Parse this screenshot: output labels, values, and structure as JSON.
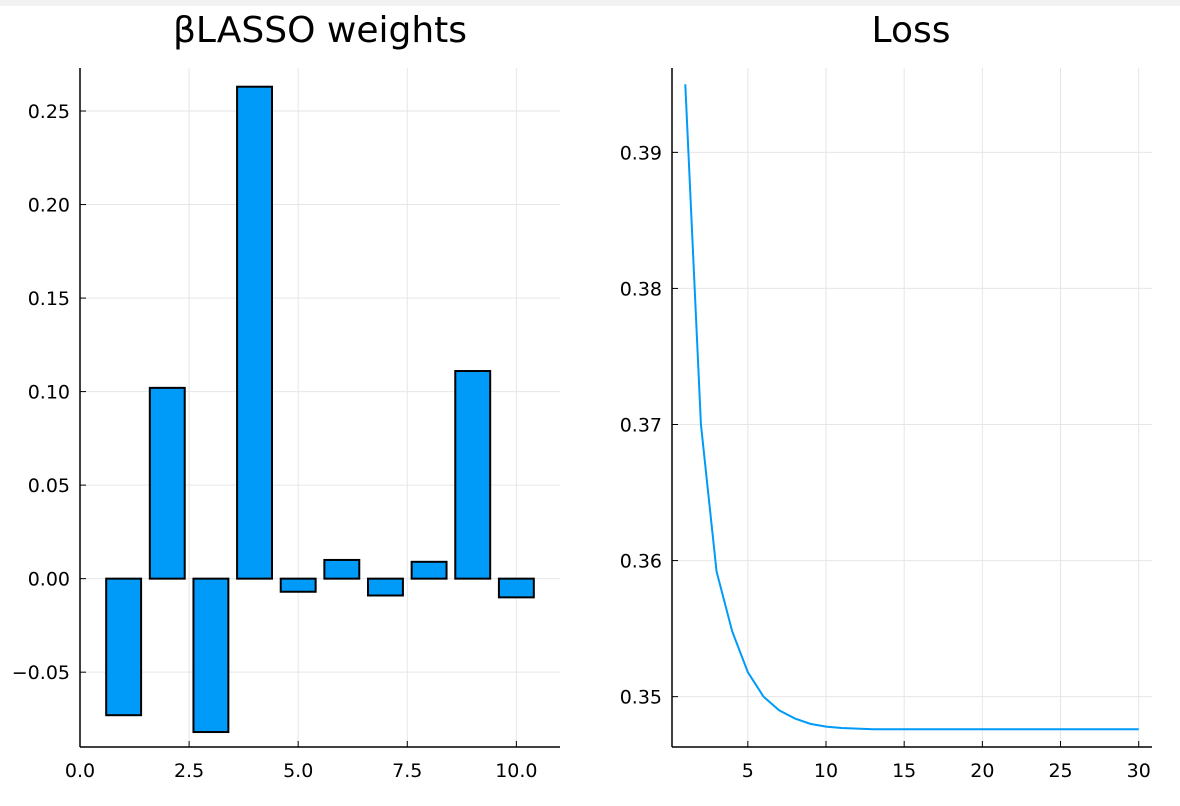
{
  "chart_data": [
    {
      "type": "bar",
      "title": "βLASSO weights",
      "x": [
        1,
        2,
        3,
        4,
        5,
        6,
        7,
        8,
        9,
        10
      ],
      "values": [
        -0.073,
        0.102,
        -0.082,
        0.263,
        -0.007,
        0.01,
        -0.009,
        0.009,
        0.111,
        -0.01
      ],
      "xlim": [
        0.0,
        11.0
      ],
      "ylim": [
        -0.09,
        0.273
      ],
      "xticks": [
        "0.0",
        "2.5",
        "5.0",
        "7.5",
        "10.0"
      ],
      "yticks": [
        "-0.05",
        "0.00",
        "0.05",
        "0.10",
        "0.15",
        "0.20",
        "0.25"
      ],
      "grid": true,
      "bar_color": "#009af9",
      "edge_color": "#000000"
    },
    {
      "type": "line",
      "title": "Loss",
      "x": [
        1,
        2,
        3,
        4,
        5,
        6,
        7,
        8,
        9,
        10,
        11,
        12,
        13,
        14,
        15,
        16,
        17,
        18,
        19,
        20,
        21,
        22,
        23,
        24,
        25,
        26,
        27,
        28,
        29,
        30
      ],
      "values": [
        0.395,
        0.37,
        0.3592,
        0.3548,
        0.3518,
        0.35,
        0.349,
        0.3484,
        0.348,
        0.3478,
        0.3477,
        0.34765,
        0.3476,
        0.3476,
        0.3476,
        0.3476,
        0.3476,
        0.3476,
        0.3476,
        0.3476,
        0.3476,
        0.3476,
        0.3476,
        0.3476,
        0.3476,
        0.3476,
        0.3476,
        0.3476,
        0.3476,
        0.3476
      ],
      "xlim": [
        0.15,
        30.85
      ],
      "ylim": [
        0.3463,
        0.3962
      ],
      "xticks": [
        "5",
        "10",
        "15",
        "20",
        "25",
        "30"
      ],
      "yticks": [
        "0.35",
        "0.36",
        "0.37",
        "0.38",
        "0.39"
      ],
      "grid": true,
      "line_color": "#009af9"
    }
  ]
}
